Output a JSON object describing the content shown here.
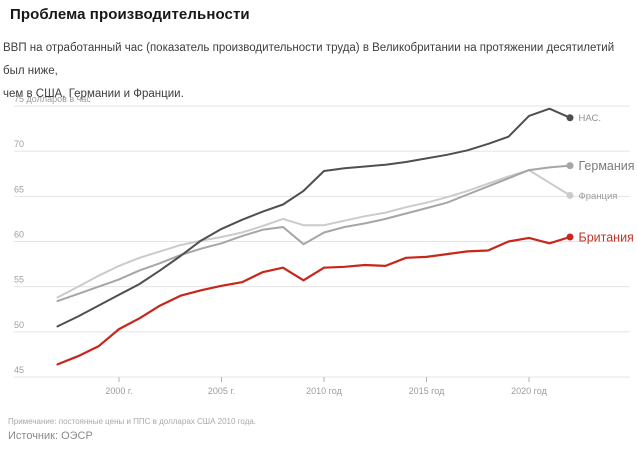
{
  "header": {
    "title": "Проблема производительности",
    "subtitle_line1": "ВВП на отработанный час (показатель производительности труда) в Великобритании на протяжении десятилетий был ниже,",
    "subtitle_line2": "чем в США, Германии и Франции."
  },
  "footer": {
    "note": "Примечание: постоянные цены и ППС в долларах США 2010 года.",
    "source": "Источник: ОЭСР"
  },
  "chart_data": {
    "type": "line",
    "title": "",
    "ylabel": "долларов в час",
    "xlabel": "",
    "grid": true,
    "legend_position": "right-end-labels",
    "ylim": [
      45,
      75
    ],
    "yticks": [
      75,
      70,
      65,
      60,
      55,
      50,
      45
    ],
    "ytick_labels": [
      "75 долларов в час",
      "70",
      "65",
      "60",
      "55",
      "50",
      "45"
    ],
    "xticks": [
      2000,
      2005,
      2010,
      2015,
      2020
    ],
    "xtick_labels": [
      "2000 г.",
      "2005 г.",
      "2010 год",
      "2015 год",
      "2020 год"
    ],
    "x": [
      1997,
      1998,
      1999,
      2000,
      2001,
      2002,
      2003,
      2004,
      2005,
      2006,
      2007,
      2008,
      2009,
      2010,
      2011,
      2012,
      2013,
      2014,
      2015,
      2016,
      2017,
      2018,
      2019,
      2020,
      2021,
      2022
    ],
    "grid_color": "#e4e4e4",
    "tick_color": "#b3b3b3",
    "axis_text_color": "#9d9d9d",
    "series": [
      {
        "id": "us",
        "label": "НАС.",
        "color": "#4f4f4f",
        "label_color": "#8f8f8f",
        "label_size": 9.5,
        "values": [
          50.6,
          51.7,
          52.9,
          54.1,
          55.3,
          56.8,
          58.4,
          60.1,
          61.4,
          62.4,
          63.3,
          64.1,
          65.6,
          67.8,
          68.1,
          68.3,
          68.5,
          68.8,
          69.2,
          69.6,
          70.1,
          70.8,
          71.6,
          73.9,
          74.7,
          73.7
        ]
      },
      {
        "id": "germany",
        "label": "Германия",
        "color": "#a6a6a6",
        "label_color": "#7d7d7d",
        "label_size": 12.5,
        "values": [
          53.4,
          54.2,
          55.0,
          55.8,
          56.8,
          57.6,
          58.5,
          59.2,
          59.8,
          60.6,
          61.3,
          61.6,
          59.7,
          61.0,
          61.6,
          62.0,
          62.5,
          63.1,
          63.7,
          64.3,
          65.2,
          66.1,
          67.0,
          67.9,
          68.2,
          68.4
        ]
      },
      {
        "id": "france",
        "label": "Франция",
        "color": "#cbcbcb",
        "label_color": "#9e9e9e",
        "label_size": 9.5,
        "values": [
          53.8,
          55.0,
          56.2,
          57.3,
          58.2,
          58.9,
          59.6,
          60.1,
          60.5,
          61.0,
          61.7,
          62.5,
          61.8,
          61.8,
          62.3,
          62.8,
          63.2,
          63.8,
          64.3,
          64.9,
          65.6,
          66.4,
          67.2,
          67.9,
          66.5,
          65.1
        ]
      },
      {
        "id": "uk",
        "label": "Британия",
        "color": "#c9261b",
        "label_color": "#bf3629",
        "label_size": 12.5,
        "values": [
          46.4,
          47.3,
          48.4,
          50.3,
          51.5,
          52.9,
          54.0,
          54.6,
          55.1,
          55.5,
          56.6,
          57.1,
          55.7,
          57.1,
          57.2,
          57.4,
          57.3,
          58.2,
          58.3,
          58.6,
          58.9,
          59.0,
          60.0,
          60.4,
          59.8,
          60.5
        ]
      }
    ]
  }
}
